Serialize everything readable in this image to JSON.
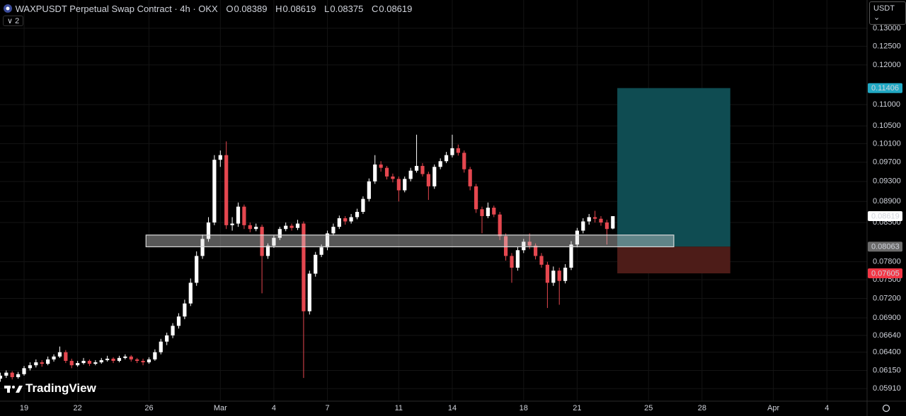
{
  "chart_data": {
    "type": "candlestick",
    "title": "WAXPUSDT Perpetual Swap Contract · 4h · OKX",
    "ohlc_labels": [
      "O",
      "H",
      "L",
      "C"
    ],
    "indicator_count": "2",
    "currency": "USDT",
    "brand": "TradingView",
    "log_scale": true,
    "grid": true,
    "up_color": "#ffffff",
    "down_color": "#e5474f",
    "xlim": [
      -32.4,
      1134
    ],
    "ylim": [
      0.0575,
      0.1383
    ],
    "xticks": [
      {
        "value": 0,
        "label": "19"
      },
      {
        "value": 72,
        "label": "22"
      },
      {
        "value": 168,
        "label": "26"
      },
      {
        "value": 264,
        "label": "Mar"
      },
      {
        "value": 336,
        "label": "4"
      },
      {
        "value": 408,
        "label": "7"
      },
      {
        "value": 504,
        "label": "11"
      },
      {
        "value": 576,
        "label": "14"
      },
      {
        "value": 672,
        "label": "18"
      },
      {
        "value": 744,
        "label": "21"
      },
      {
        "value": 840,
        "label": "25"
      },
      {
        "value": 912,
        "label": "28"
      },
      {
        "value": 1008,
        "label": "Apr"
      },
      {
        "value": 1080,
        "label": "4"
      }
    ],
    "yticks": [
      {
        "value": 0.13,
        "label": "0.13000"
      },
      {
        "value": 0.125,
        "label": "0.12500"
      },
      {
        "value": 0.12,
        "label": "0.12000"
      },
      {
        "value": 0.11,
        "label": "0.11000"
      },
      {
        "value": 0.105,
        "label": "0.10500"
      },
      {
        "value": 0.101,
        "label": "0.10100"
      },
      {
        "value": 0.097,
        "label": "0.09700"
      },
      {
        "value": 0.093,
        "label": "0.09300"
      },
      {
        "value": 0.089,
        "label": "0.08900"
      },
      {
        "value": 0.085,
        "label": "0.08500"
      },
      {
        "value": 0.078,
        "label": "0.07800"
      },
      {
        "value": 0.075,
        "label": "0.07500"
      },
      {
        "value": 0.072,
        "label": "0.07200"
      },
      {
        "value": 0.069,
        "label": "0.06900"
      },
      {
        "value": 0.0664,
        "label": "0.06640"
      },
      {
        "value": 0.064,
        "label": "0.06400"
      },
      {
        "value": 0.0615,
        "label": "0.06150"
      },
      {
        "value": 0.0591,
        "label": "0.05910"
      }
    ],
    "x": [
      -32,
      -24,
      -16,
      -8,
      0,
      8,
      16,
      24,
      32,
      40,
      48,
      56,
      64,
      72,
      80,
      88,
      96,
      104,
      112,
      120,
      128,
      136,
      144,
      152,
      160,
      168,
      176,
      184,
      192,
      200,
      208,
      216,
      224,
      232,
      240,
      248,
      256,
      264,
      272,
      280,
      288,
      296,
      304,
      312,
      320,
      328,
      336,
      344,
      352,
      360,
      368,
      376,
      384,
      392,
      400,
      408,
      416,
      424,
      432,
      440,
      448,
      456,
      464,
      472,
      480,
      488,
      496,
      504,
      512,
      520,
      528,
      536,
      544,
      552,
      560,
      568,
      576,
      584,
      592,
      600,
      608,
      616,
      624,
      632,
      640,
      648,
      656,
      664,
      672,
      680,
      688,
      696,
      704,
      712,
      720,
      728,
      736,
      744,
      752,
      760,
      768,
      776,
      784,
      792
    ],
    "candles": [
      [
        0.0604,
        0.0612,
        0.06,
        0.0608
      ],
      [
        0.0608,
        0.0615,
        0.0605,
        0.0612
      ],
      [
        0.0612,
        0.0614,
        0.0603,
        0.0606
      ],
      [
        0.0606,
        0.0613,
        0.0604,
        0.061
      ],
      [
        0.061,
        0.0621,
        0.0608,
        0.0618
      ],
      [
        0.0618,
        0.0626,
        0.0615,
        0.0622
      ],
      [
        0.0622,
        0.063,
        0.0619,
        0.0626
      ],
      [
        0.0626,
        0.0629,
        0.062,
        0.0624
      ],
      [
        0.0624,
        0.0634,
        0.0622,
        0.063
      ],
      [
        0.063,
        0.0637,
        0.0627,
        0.0634
      ],
      [
        0.0634,
        0.0648,
        0.0632,
        0.064
      ],
      [
        0.064,
        0.0643,
        0.0625,
        0.0628
      ],
      [
        0.0628,
        0.0631,
        0.0618,
        0.0622
      ],
      [
        0.0622,
        0.0628,
        0.062,
        0.0625
      ],
      [
        0.0625,
        0.0632,
        0.0623,
        0.0628
      ],
      [
        0.0628,
        0.063,
        0.0621,
        0.0624
      ],
      [
        0.0624,
        0.0629,
        0.0622,
        0.0626
      ],
      [
        0.0626,
        0.0632,
        0.0624,
        0.0629
      ],
      [
        0.0629,
        0.0635,
        0.0627,
        0.0631
      ],
      [
        0.0631,
        0.0633,
        0.0625,
        0.0628
      ],
      [
        0.0628,
        0.0635,
        0.0626,
        0.0632
      ],
      [
        0.0632,
        0.0637,
        0.063,
        0.0634
      ],
      [
        0.0634,
        0.0636,
        0.0627,
        0.063
      ],
      [
        0.063,
        0.0632,
        0.0625,
        0.0628
      ],
      [
        0.0628,
        0.0631,
        0.0622,
        0.0626
      ],
      [
        0.0626,
        0.0633,
        0.0624,
        0.063
      ],
      [
        0.063,
        0.0644,
        0.0628,
        0.064
      ],
      [
        0.064,
        0.0659,
        0.0637,
        0.0655
      ],
      [
        0.0655,
        0.0668,
        0.065,
        0.0664
      ],
      [
        0.0664,
        0.0682,
        0.066,
        0.0678
      ],
      [
        0.0678,
        0.0697,
        0.0674,
        0.0692
      ],
      [
        0.0692,
        0.0718,
        0.0688,
        0.0712
      ],
      [
        0.0712,
        0.0752,
        0.0708,
        0.0745
      ],
      [
        0.0745,
        0.0798,
        0.074,
        0.079
      ],
      [
        0.079,
        0.0828,
        0.0785,
        0.082
      ],
      [
        0.082,
        0.086,
        0.0815,
        0.085
      ],
      [
        0.085,
        0.0985,
        0.0845,
        0.0975
      ],
      [
        0.0975,
        0.0995,
        0.096,
        0.0985
      ],
      [
        0.0985,
        0.1015,
        0.0838,
        0.0845
      ],
      [
        0.0845,
        0.086,
        0.0835,
        0.0848
      ],
      [
        0.0848,
        0.0888,
        0.0842,
        0.088
      ],
      [
        0.088,
        0.0884,
        0.0838,
        0.0845
      ],
      [
        0.0845,
        0.085,
        0.0832,
        0.0838
      ],
      [
        0.0838,
        0.0848,
        0.0834,
        0.0842
      ],
      [
        0.0842,
        0.0846,
        0.0728,
        0.079
      ],
      [
        0.079,
        0.0812,
        0.0785,
        0.0808
      ],
      [
        0.0808,
        0.0826,
        0.0804,
        0.0822
      ],
      [
        0.0822,
        0.0842,
        0.0818,
        0.0838
      ],
      [
        0.0838,
        0.085,
        0.0834,
        0.0844
      ],
      [
        0.0844,
        0.0848,
        0.0835,
        0.084
      ],
      [
        0.084,
        0.0855,
        0.0836,
        0.0848
      ],
      [
        0.0848,
        0.0852,
        0.0605,
        0.07
      ],
      [
        0.07,
        0.0765,
        0.0695,
        0.076
      ],
      [
        0.076,
        0.0797,
        0.0755,
        0.0792
      ],
      [
        0.0792,
        0.081,
        0.0788,
        0.0805
      ],
      [
        0.0805,
        0.0835,
        0.08,
        0.083
      ],
      [
        0.083,
        0.0848,
        0.0826,
        0.0842
      ],
      [
        0.0842,
        0.0863,
        0.0838,
        0.0858
      ],
      [
        0.0858,
        0.0862,
        0.0846,
        0.0852
      ],
      [
        0.0852,
        0.0866,
        0.0848,
        0.086
      ],
      [
        0.086,
        0.0876,
        0.0856,
        0.087
      ],
      [
        0.087,
        0.09,
        0.0866,
        0.0895
      ],
      [
        0.0895,
        0.0936,
        0.089,
        0.093
      ],
      [
        0.093,
        0.0985,
        0.0925,
        0.0965
      ],
      [
        0.0965,
        0.0972,
        0.095,
        0.0958
      ],
      [
        0.0958,
        0.0962,
        0.0934,
        0.094
      ],
      [
        0.094,
        0.0946,
        0.0928,
        0.0935
      ],
      [
        0.0935,
        0.094,
        0.089,
        0.0912
      ],
      [
        0.0912,
        0.094,
        0.0908,
        0.0935
      ],
      [
        0.0935,
        0.0958,
        0.093,
        0.0952
      ],
      [
        0.0952,
        0.103,
        0.0948,
        0.0962
      ],
      [
        0.0962,
        0.0968,
        0.094,
        0.0945
      ],
      [
        0.0945,
        0.095,
        0.0893,
        0.092
      ],
      [
        0.092,
        0.0965,
        0.0915,
        0.096
      ],
      [
        0.096,
        0.0978,
        0.0955,
        0.0972
      ],
      [
        0.0972,
        0.0992,
        0.0968,
        0.0985
      ],
      [
        0.0985,
        0.103,
        0.098,
        0.1
      ],
      [
        0.1,
        0.1008,
        0.0984,
        0.099
      ],
      [
        0.099,
        0.0995,
        0.0948,
        0.0955
      ],
      [
        0.0955,
        0.096,
        0.0912,
        0.092
      ],
      [
        0.092,
        0.0925,
        0.0868,
        0.0875
      ],
      [
        0.0875,
        0.088,
        0.083,
        0.0862
      ],
      [
        0.0862,
        0.0888,
        0.0858,
        0.0878
      ],
      [
        0.0878,
        0.0882,
        0.086,
        0.0865
      ],
      [
        0.0865,
        0.087,
        0.0818,
        0.0825
      ],
      [
        0.0825,
        0.083,
        0.0782,
        0.079
      ],
      [
        0.079,
        0.0795,
        0.0745,
        0.077
      ],
      [
        0.077,
        0.0806,
        0.0765,
        0.08
      ],
      [
        0.08,
        0.082,
        0.0795,
        0.0815
      ],
      [
        0.0815,
        0.083,
        0.0802,
        0.0808
      ],
      [
        0.0808,
        0.0812,
        0.0784,
        0.079
      ],
      [
        0.079,
        0.0795,
        0.077,
        0.0775
      ],
      [
        0.0775,
        0.078,
        0.0705,
        0.0745
      ],
      [
        0.0745,
        0.0772,
        0.074,
        0.0765
      ],
      [
        0.0765,
        0.077,
        0.071,
        0.0748
      ],
      [
        0.0748,
        0.0776,
        0.0744,
        0.077
      ],
      [
        0.077,
        0.0816,
        0.0766,
        0.081
      ],
      [
        0.081,
        0.084,
        0.0805,
        0.0835
      ],
      [
        0.0835,
        0.0858,
        0.083,
        0.0852
      ],
      [
        0.0852,
        0.0866,
        0.0846,
        0.086
      ],
      [
        0.086,
        0.0872,
        0.085,
        0.0857
      ],
      [
        0.0857,
        0.0862,
        0.0844,
        0.085
      ],
      [
        0.085,
        0.0855,
        0.081,
        0.0838
      ],
      [
        0.08389,
        0.08619,
        0.08375,
        0.08619
      ]
    ],
    "zone": {
      "x": [
        164,
        874
      ],
      "y": [
        0.0806,
        0.0827
      ],
      "color": "#d9d9d9"
    },
    "position": {
      "x": [
        798,
        950
      ],
      "entry": 0.08063,
      "target": 0.11406,
      "stop": 0.07605,
      "target_color": "#22a9c4",
      "entry_color": "#6b6b6b",
      "stop_color": "#f23645",
      "profit_fill": "#0f4c52",
      "loss_fill": "#4d1c18"
    }
  }
}
